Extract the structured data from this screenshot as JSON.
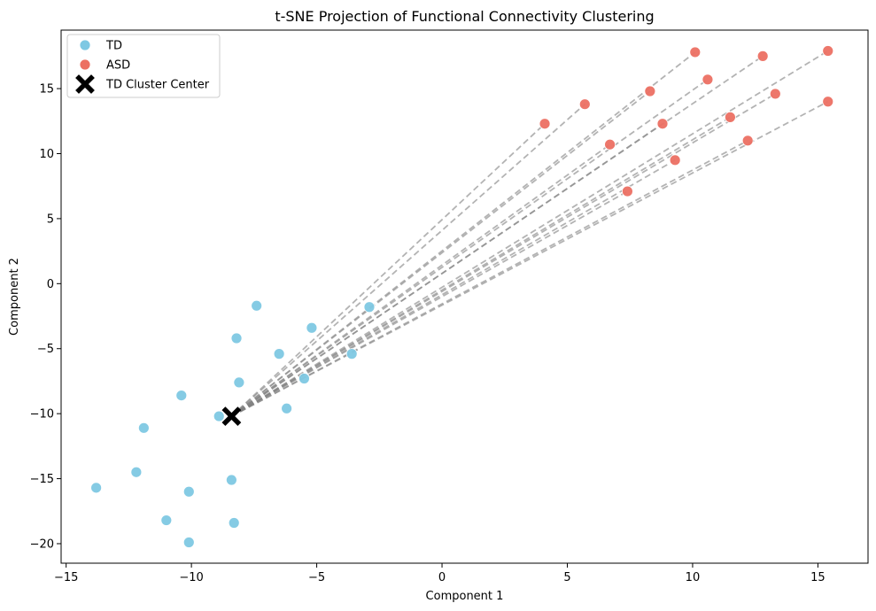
{
  "chart_data": {
    "type": "scatter",
    "title": "t-SNE Projection of Functional Connectivity Clustering",
    "xlabel": "Component 1",
    "ylabel": "Component 2",
    "xlim": [
      -15.2,
      17.0
    ],
    "ylim": [
      -21.5,
      19.5
    ],
    "xticks": [
      -15,
      -10,
      -5,
      0,
      5,
      10,
      15
    ],
    "yticks": [
      -20,
      -15,
      -10,
      -5,
      0,
      5,
      10,
      15
    ],
    "xtick_labels": [
      "−15",
      "−10",
      "−5",
      "0",
      "5",
      "10",
      "15"
    ],
    "ytick_labels": [
      "−20",
      "−15",
      "−10",
      "−5",
      "0",
      "5",
      "10",
      "15"
    ],
    "grid": false,
    "legend_position": "top-left",
    "series": [
      {
        "name": "TD",
        "color": "#7ec8e3",
        "marker": "circle",
        "points": [
          [
            -7.4,
            -1.7
          ],
          [
            -2.9,
            -1.8
          ],
          [
            -5.2,
            -3.4
          ],
          [
            -8.2,
            -4.2
          ],
          [
            -6.5,
            -5.4
          ],
          [
            -3.6,
            -5.4
          ],
          [
            -8.1,
            -7.6
          ],
          [
            -5.5,
            -7.3
          ],
          [
            -10.4,
            -8.6
          ],
          [
            -6.2,
            -9.6
          ],
          [
            -8.9,
            -10.2
          ],
          [
            -11.9,
            -11.1
          ],
          [
            -12.2,
            -14.5
          ],
          [
            -8.4,
            -15.1
          ],
          [
            -13.8,
            -15.7
          ],
          [
            -10.1,
            -16.0
          ],
          [
            -11.0,
            -18.2
          ],
          [
            -8.3,
            -18.4
          ],
          [
            -10.1,
            -19.9
          ]
        ]
      },
      {
        "name": "ASD",
        "color": "#ec7063",
        "marker": "circle",
        "points": [
          [
            10.1,
            17.8
          ],
          [
            15.4,
            17.9
          ],
          [
            12.8,
            17.5
          ],
          [
            10.6,
            15.7
          ],
          [
            8.3,
            14.8
          ],
          [
            13.3,
            14.6
          ],
          [
            15.4,
            14.0
          ],
          [
            5.7,
            13.8
          ],
          [
            4.1,
            12.3
          ],
          [
            11.5,
            12.8
          ],
          [
            8.8,
            12.3
          ],
          [
            12.2,
            11.0
          ],
          [
            6.7,
            10.7
          ],
          [
            9.3,
            9.5
          ],
          [
            7.4,
            7.1
          ]
        ]
      },
      {
        "name": "TD Cluster Center",
        "color": "#000000",
        "marker": "x",
        "points": [
          [
            -8.4,
            -10.2
          ]
        ]
      }
    ],
    "connections": {
      "from": "TD Cluster Center",
      "to": "ASD",
      "style": "dashed",
      "color": "#808080"
    }
  }
}
